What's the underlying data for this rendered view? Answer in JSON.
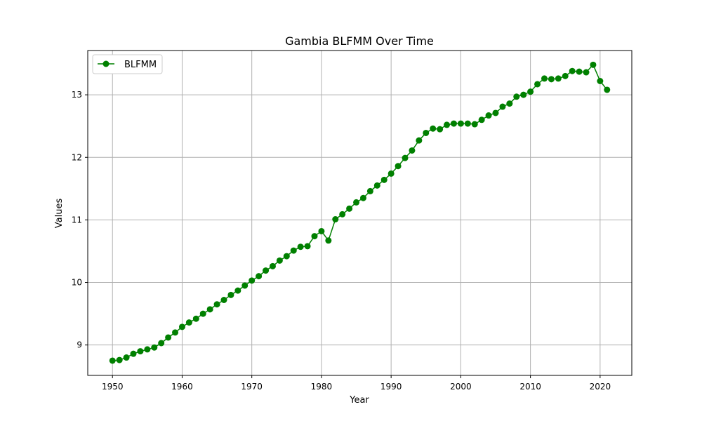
{
  "chart_data": {
    "type": "line",
    "title": "Gambia BLFMM Over Time",
    "xlabel": "Year",
    "ylabel": "Values",
    "xlim": [
      1946.45,
      2024.55
    ],
    "ylim": [
      8.514,
      13.708
    ],
    "xticks": [
      1950,
      1960,
      1970,
      1980,
      1990,
      2000,
      2010,
      2020
    ],
    "yticks": [
      9,
      10,
      11,
      12,
      13
    ],
    "grid": true,
    "legend_position": "top-left",
    "series": [
      {
        "name": "BLFMM",
        "color": "#008000",
        "marker": "circle",
        "x": [
          1950,
          1951,
          1952,
          1953,
          1954,
          1955,
          1956,
          1957,
          1958,
          1959,
          1960,
          1961,
          1962,
          1963,
          1964,
          1965,
          1966,
          1967,
          1968,
          1969,
          1970,
          1971,
          1972,
          1973,
          1974,
          1975,
          1976,
          1977,
          1978,
          1979,
          1980,
          1981,
          1982,
          1983,
          1984,
          1985,
          1986,
          1987,
          1988,
          1989,
          1990,
          1991,
          1992,
          1993,
          1994,
          1995,
          1996,
          1997,
          1998,
          1999,
          2000,
          2001,
          2002,
          2003,
          2004,
          2005,
          2006,
          2007,
          2008,
          2009,
          2010,
          2011,
          2012,
          2013,
          2014,
          2015,
          2016,
          2017,
          2018,
          2019,
          2020,
          2021
        ],
        "y": [
          8.75,
          8.76,
          8.8,
          8.86,
          8.9,
          8.93,
          8.96,
          9.03,
          9.12,
          9.2,
          9.29,
          9.36,
          9.42,
          9.5,
          9.57,
          9.65,
          9.72,
          9.8,
          9.87,
          9.95,
          10.03,
          10.1,
          10.19,
          10.26,
          10.35,
          10.42,
          10.51,
          10.57,
          10.58,
          10.74,
          10.82,
          10.67,
          11.01,
          11.09,
          11.18,
          11.28,
          11.35,
          11.46,
          11.55,
          11.64,
          11.74,
          11.86,
          11.99,
          12.11,
          12.27,
          12.39,
          12.46,
          12.45,
          12.52,
          12.54,
          12.54,
          12.54,
          12.53,
          12.6,
          12.67,
          12.71,
          12.81,
          12.86,
          12.97,
          13.0,
          13.05,
          13.17,
          13.26,
          13.25,
          13.26,
          13.3,
          13.38,
          13.37,
          13.36,
          13.48,
          13.22,
          13.08
        ]
      }
    ]
  }
}
